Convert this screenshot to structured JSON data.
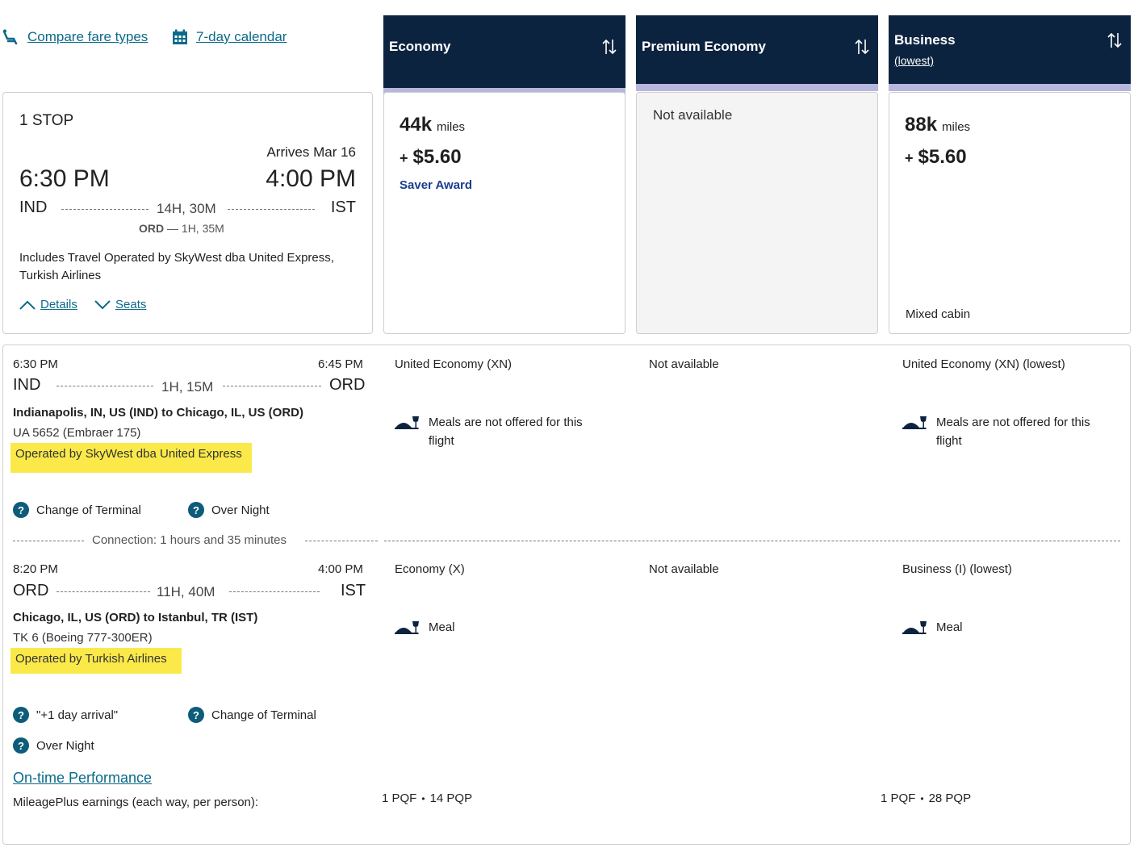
{
  "toolbar": {
    "compare_label": "Compare fare types",
    "calendar_label": "7-day calendar"
  },
  "columns": [
    {
      "title": "Economy",
      "subtitle": ""
    },
    {
      "title": "Premium Economy",
      "subtitle": ""
    },
    {
      "title": "Business",
      "subtitle": "(lowest)"
    }
  ],
  "summary": {
    "stops": "1 STOP",
    "arrives_label": "Arrives Mar 16",
    "depart_time": "6:30 PM",
    "arrive_time": "4:00 PM",
    "origin": "IND",
    "destination": "IST",
    "duration": "14H, 30M",
    "layover_code": "ORD",
    "layover_time": "— 1H, 35M",
    "operated_note": "Includes Travel Operated by SkyWest dba United Express, Turkish Airlines",
    "details_label": "Details",
    "seats_label": "Seats"
  },
  "fares": {
    "economy": {
      "miles_value": "44k",
      "miles_unit": "miles",
      "plus": "+",
      "price": "$5.60",
      "award": "Saver Award"
    },
    "premium": {
      "status": "Not available"
    },
    "business": {
      "miles_value": "88k",
      "miles_unit": "miles",
      "plus": "+",
      "price": "$5.60",
      "note": "Mixed cabin"
    }
  },
  "segments": [
    {
      "depart_time": "6:30 PM",
      "arrive_time": "6:45 PM",
      "from": "IND",
      "to": "ORD",
      "duration": "1H, 15M",
      "route": "Indianapolis, IN, US (IND) to Chicago, IL, US (ORD)",
      "flight": "UA 5652 (Embraer 175)",
      "operated_by": "Operated by SkyWest dba United Express",
      "economy_class": "United Economy (XN)",
      "premium_class": "Not available",
      "business_class": "United Economy (XN) (lowest)",
      "economy_meal": "Meals are not offered for this flight",
      "business_meal": "Meals are not offered for this flight",
      "badges": [
        "Change of Terminal",
        "Over Night"
      ]
    },
    {
      "depart_time": "8:20 PM",
      "arrive_time": "4:00 PM",
      "from": "ORD",
      "to": "IST",
      "duration": "11H, 40M",
      "route": "Chicago, IL, US (ORD) to Istanbul, TR (IST)",
      "flight": "TK 6 (Boeing 777-300ER)",
      "operated_by": "Operated by Turkish Airlines",
      "economy_class": "Economy (X)",
      "premium_class": "Not available",
      "business_class": "Business (I) (lowest)",
      "economy_meal": "Meal",
      "business_meal": "Meal",
      "badges": [
        "\"+1 day arrival\"",
        "Change of Terminal",
        "Over Night"
      ]
    }
  ],
  "connection": "Connection: 1 hours and 35 minutes",
  "footer": {
    "ontime_label": "On-time Performance",
    "earnings_label": "MileagePlus earnings (each way, per person):",
    "economy_pqf": "1 PQF",
    "economy_pqp": "14 PQP",
    "business_pqf": "1 PQF",
    "business_pqp": "28 PQP"
  },
  "colors": {
    "header_navy": "#0c2340",
    "header_strip": "#b7b6dc",
    "link_teal": "#0b6a8a",
    "award_blue": "#1a3d8f",
    "highlight": "#fbe94a",
    "help_icon": "#0c5c7a"
  }
}
